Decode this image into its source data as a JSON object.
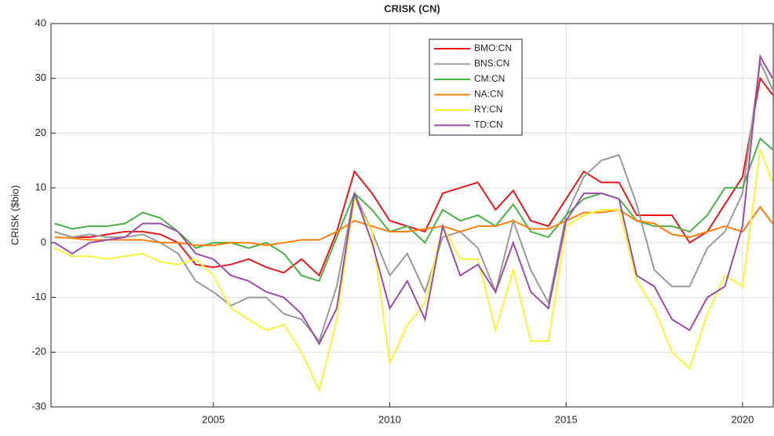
{
  "chart_data": {
    "type": "line",
    "title": "CRISK (CN)",
    "ylabel": "CRISK ($bio)",
    "x": [
      2000.5,
      2001,
      2001.5,
      2002,
      2002.5,
      2003,
      2003.5,
      2004,
      2004.5,
      2005,
      2005.5,
      2006,
      2006.5,
      2007,
      2007.5,
      2008,
      2008.5,
      2009,
      2009.5,
      2010,
      2010.5,
      2011,
      2011.5,
      2012,
      2012.5,
      2013,
      2013.5,
      2014,
      2014.5,
      2015,
      2015.5,
      2016,
      2016.5,
      2017,
      2017.5,
      2018,
      2018.5,
      2019,
      2019.5,
      2020,
      2020.5,
      2020.85
    ],
    "series": [
      {
        "name": "BMO:CN",
        "color": "#e31a1c",
        "values": [
          2,
          1,
          1,
          1.5,
          2,
          2,
          1.5,
          0,
          -4,
          -4.5,
          -4,
          -3,
          -4.5,
          -5.5,
          -3,
          -6,
          2,
          13,
          9,
          4,
          3,
          2,
          9,
          10,
          11,
          6,
          9.5,
          4,
          3,
          8,
          13,
          11,
          11,
          5,
          5,
          5,
          0,
          2,
          7,
          12,
          30,
          27
        ]
      },
      {
        "name": "BNS:CN",
        "color": "#999999",
        "values": [
          2,
          1,
          1.5,
          1,
          1,
          1.5,
          0,
          -2,
          -7,
          -9,
          -11.5,
          -10,
          -10,
          -13,
          -14,
          -18,
          -8,
          9,
          2,
          -6,
          -2,
          -9,
          1,
          2,
          -1,
          -9,
          4,
          -5,
          -11,
          5,
          12,
          15,
          16,
          7,
          -5,
          -8,
          -8,
          -1,
          2,
          9,
          33,
          28
        ]
      },
      {
        "name": "CM:CN",
        "color": "#4daf4a",
        "values": [
          3.5,
          2.5,
          3,
          3,
          3.5,
          5.5,
          4.5,
          2,
          -1,
          0,
          0,
          -1,
          0,
          -2,
          -6,
          -7,
          1,
          9,
          6,
          2,
          3,
          0,
          6,
          4,
          5,
          3,
          7,
          2,
          1,
          5,
          8,
          9,
          8,
          4,
          3,
          3,
          2,
          5,
          10,
          10,
          19,
          17
        ]
      },
      {
        "name": "NA:CN",
        "color": "#ff7f0e",
        "values": [
          1,
          0.8,
          0.5,
          0.5,
          0.5,
          0.5,
          0,
          0,
          -0.5,
          -0.5,
          0,
          0,
          -0.5,
          0,
          0.5,
          0.5,
          2,
          4,
          3,
          2,
          2,
          2.5,
          3,
          2,
          3,
          3,
          4,
          2.5,
          2.5,
          4,
          5.5,
          5.5,
          6,
          4,
          3.5,
          1.5,
          1,
          2,
          3,
          2,
          6.5,
          3.5
        ]
      },
      {
        "name": "RY:CN",
        "color": "#f7f43a",
        "values": [
          -1,
          -2.5,
          -2.5,
          -3,
          -2.5,
          -2,
          -3.5,
          -4,
          -3,
          -6,
          -12,
          -14,
          -16,
          -15,
          -20,
          -27,
          -14,
          8,
          2,
          -22,
          -15,
          -11,
          3,
          -3,
          -3,
          -16,
          -5,
          -18,
          -18,
          3,
          5,
          6,
          6,
          -7,
          -12,
          -20,
          -23,
          -13,
          -6,
          -8,
          17,
          11
        ]
      },
      {
        "name": "TD:CN",
        "color": "#984ea3",
        "values": [
          0,
          -2,
          0,
          0.5,
          1,
          3.5,
          3.5,
          2,
          -2,
          -3,
          -6,
          -7,
          -9,
          -10,
          -13,
          -18.5,
          -12,
          9,
          0,
          -12,
          -7,
          -14,
          3,
          -6,
          -4,
          -9,
          0,
          -9,
          -12,
          4,
          9,
          9,
          8,
          -6,
          -8,
          -14,
          -16,
          -10,
          -8,
          3,
          34,
          30
        ]
      }
    ],
    "xlim": [
      2000.4,
      2020.87
    ],
    "ylim": [
      -30,
      40
    ],
    "xticks": [
      2005,
      2010,
      2015,
      2020
    ],
    "yticks": [
      -30,
      -20,
      -10,
      0,
      10,
      20,
      30,
      40
    ],
    "grid": true,
    "legend": "north"
  }
}
